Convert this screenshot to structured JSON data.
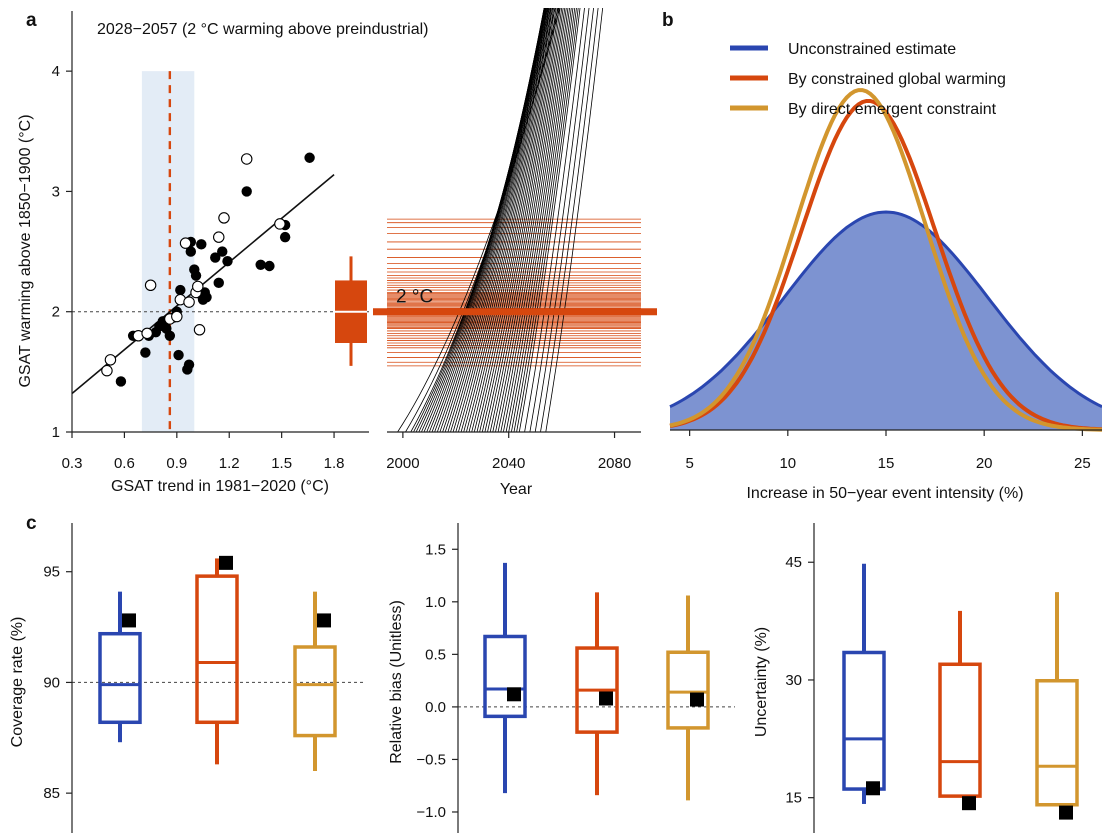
{
  "figure": {
    "panel_letters": [
      "a",
      "b",
      "c"
    ]
  },
  "colors": {
    "unconstrained": "#2a46b0",
    "by_warming": "#d6470e",
    "by_direct": "#d2962e",
    "shade": "#e3ecf6",
    "threshold": "#d6470e",
    "fill_blue": "#7d93d1"
  },
  "chart_data": [
    {
      "id": "a_scatter",
      "type": "scatter",
      "title": "2028−2057 (2 °C warming above preindustrial)",
      "xlabel": "GSAT trend in 1981−2020 (°C)",
      "ylabel": "GSAT warming above 1850−1900 (°C)",
      "xlim": [
        0.3,
        2.0
      ],
      "ylim": [
        1.0,
        4.5
      ],
      "xticks": [
        "0.3",
        "0.6",
        "0.9",
        "1.2",
        "1.5",
        "1.8"
      ],
      "yticks": [
        "1",
        "2",
        "3",
        "4"
      ],
      "observed_trend": 0.86,
      "observed_range": [
        0.7,
        1.0
      ],
      "reference_level": 2.0,
      "fit_line": [
        [
          0.3,
          1.32
        ],
        [
          1.8,
          3.14
        ]
      ],
      "filled_points": [
        [
          0.58,
          1.42
        ],
        [
          0.65,
          1.8
        ],
        [
          0.72,
          1.66
        ],
        [
          0.74,
          1.8
        ],
        [
          0.78,
          1.83
        ],
        [
          0.8,
          1.88
        ],
        [
          0.82,
          1.92
        ],
        [
          0.84,
          1.86
        ],
        [
          0.86,
          1.8
        ],
        [
          0.88,
          1.95
        ],
        [
          0.9,
          2.0
        ],
        [
          0.91,
          1.64
        ],
        [
          0.92,
          2.18
        ],
        [
          0.96,
          1.52
        ],
        [
          0.97,
          1.56
        ],
        [
          0.98,
          2.5
        ],
        [
          0.98,
          2.58
        ],
        [
          1.0,
          2.35
        ],
        [
          1.01,
          2.3
        ],
        [
          1.02,
          2.2
        ],
        [
          1.04,
          2.56
        ],
        [
          1.04,
          2.14
        ],
        [
          1.05,
          2.1
        ],
        [
          1.06,
          2.16
        ],
        [
          1.07,
          2.12
        ],
        [
          1.12,
          2.45
        ],
        [
          1.14,
          2.24
        ],
        [
          1.16,
          2.5
        ],
        [
          1.19,
          2.42
        ],
        [
          1.3,
          3.0
        ],
        [
          1.38,
          2.39
        ],
        [
          1.43,
          2.38
        ],
        [
          1.52,
          2.72
        ],
        [
          1.52,
          2.62
        ],
        [
          1.66,
          3.28
        ]
      ],
      "open_points": [
        [
          0.5,
          1.51
        ],
        [
          0.52,
          1.6
        ],
        [
          0.68,
          1.8
        ],
        [
          0.73,
          1.82
        ],
        [
          0.75,
          2.22
        ],
        [
          0.86,
          1.94
        ],
        [
          0.9,
          1.96
        ],
        [
          0.92,
          2.1
        ],
        [
          0.95,
          2.57
        ],
        [
          0.97,
          2.08
        ],
        [
          1.01,
          2.16
        ],
        [
          1.02,
          2.21
        ],
        [
          1.03,
          1.85
        ],
        [
          1.14,
          2.62
        ],
        [
          1.17,
          2.78
        ],
        [
          1.3,
          3.27
        ],
        [
          1.49,
          2.73
        ]
      ]
    },
    {
      "id": "a_box",
      "type": "box",
      "median": 2.0,
      "q1": 1.74,
      "q3": 2.26,
      "whisker_low": 1.55,
      "whisker_high": 2.46
    },
    {
      "id": "a_time",
      "type": "line",
      "xlabel": "Year",
      "xlim": [
        1994,
        2090
      ],
      "ylim": [
        1.0,
        4.5
      ],
      "xticks": [
        "2000",
        "2040",
        "2080"
      ],
      "threshold_label": "2 °C",
      "threshold": 2.0,
      "crossing_levels": [
        1.55,
        1.58,
        1.62,
        1.66,
        1.7,
        1.72,
        1.74,
        1.76,
        1.78,
        1.8,
        1.82,
        1.84,
        1.86,
        1.87,
        1.88,
        1.89,
        1.9,
        1.91,
        1.92,
        1.93,
        1.94,
        1.95,
        1.96,
        1.97,
        1.98,
        1.99,
        2.0,
        2.01,
        2.02,
        2.03,
        2.04,
        2.05,
        2.06,
        2.07,
        2.08,
        2.09,
        2.1,
        2.11,
        2.12,
        2.13,
        2.14,
        2.15,
        2.16,
        2.18,
        2.2,
        2.22,
        2.24,
        2.26,
        2.28,
        2.3,
        2.33,
        2.36,
        2.4,
        2.45,
        2.52,
        2.58,
        2.65,
        2.7,
        2.74,
        2.77
      ],
      "trajectory_start_years": [
        1998,
        2001,
        2003,
        2004,
        2005,
        2006,
        2007,
        2008,
        2009,
        2010,
        2011,
        2012,
        2013,
        2014,
        2015,
        2016,
        2017,
        2018,
        2019,
        2020,
        2021,
        2022,
        2023,
        2024,
        2025,
        2026,
        2027,
        2028,
        2029,
        2030,
        2031,
        2032,
        2033,
        2034,
        2035,
        2036,
        2037,
        2038,
        2039,
        2040,
        2041,
        2042,
        2043,
        2044,
        2046,
        2048,
        2050,
        2052,
        2054
      ],
      "trajectory_rates": [
        0.034,
        0.037,
        0.04,
        0.042,
        0.044,
        0.046,
        0.048,
        0.05,
        0.052,
        0.054,
        0.056,
        0.058,
        0.06,
        0.062,
        0.064,
        0.066,
        0.068,
        0.07,
        0.072,
        0.074,
        0.076,
        0.078,
        0.08,
        0.082,
        0.084,
        0.086,
        0.088,
        0.09,
        0.092,
        0.094,
        0.096,
        0.098,
        0.1,
        0.102,
        0.104,
        0.106,
        0.108,
        0.11,
        0.112,
        0.114,
        0.116,
        0.118,
        0.12,
        0.122,
        0.124,
        0.126,
        0.128,
        0.13,
        0.132
      ]
    },
    {
      "id": "b_density",
      "type": "area",
      "xlabel": "Increase in 50−year event intensity (%)",
      "xlim": [
        4,
        26
      ],
      "xticks": [
        "5",
        "10",
        "15",
        "20",
        "25"
      ],
      "series": [
        {
          "name": "Unconstrained estimate",
          "mean": 15.0,
          "sd": 5.2,
          "peak": 1.0
        },
        {
          "name": "By constrained global warming",
          "mean": 14.1,
          "sd": 3.4,
          "peak": 1.51
        },
        {
          "name": "By direct emergent constraint",
          "mean": 13.7,
          "sd": 3.3,
          "peak": 1.56
        }
      ]
    },
    {
      "id": "c_coverage",
      "type": "box",
      "ylabel": "Coverage rate (%)",
      "ylim": [
        83.2,
        97.2
      ],
      "yticks": [
        "85",
        "90",
        "95"
      ],
      "reference": 90,
      "boxes": [
        {
          "whisker_low": 87.3,
          "q1": 88.2,
          "median": 89.9,
          "q3": 92.2,
          "whisker_high": 94.1,
          "marker": 92.8
        },
        {
          "whisker_low": 86.3,
          "q1": 88.2,
          "median": 90.9,
          "q3": 94.8,
          "whisker_high": 95.6,
          "marker": 95.4
        },
        {
          "whisker_low": 86.0,
          "q1": 87.6,
          "median": 89.9,
          "q3": 91.6,
          "whisker_high": 94.1,
          "marker": 92.8
        }
      ]
    },
    {
      "id": "c_bias",
      "type": "box",
      "ylabel": "Relative bias (Unitless)",
      "ylim": [
        -1.2,
        1.75
      ],
      "yticks": [
        "−1.0",
        "−0.5",
        "0.0",
        "0.5",
        "1.0",
        "1.5"
      ],
      "reference": 0,
      "boxes": [
        {
          "whisker_low": -0.82,
          "q1": -0.09,
          "median": 0.17,
          "q3": 0.67,
          "whisker_high": 1.37,
          "marker": 0.12
        },
        {
          "whisker_low": -0.84,
          "q1": -0.24,
          "median": 0.16,
          "q3": 0.56,
          "whisker_high": 1.09,
          "marker": 0.08
        },
        {
          "whisker_low": -0.89,
          "q1": -0.2,
          "median": 0.14,
          "q3": 0.52,
          "whisker_high": 1.06,
          "marker": 0.07
        }
      ]
    },
    {
      "id": "c_uncertainty",
      "type": "box",
      "ylabel": "Uncertainty (%)",
      "ylim": [
        10.5,
        50
      ],
      "yticks": [
        "15",
        "30",
        "45"
      ],
      "boxes": [
        {
          "whisker_low": 14.2,
          "q1": 16.1,
          "median": 22.5,
          "q3": 33.5,
          "whisker_high": 44.8,
          "marker": 16.2
        },
        {
          "whisker_low": 15.2,
          "q1": 15.2,
          "median": 19.6,
          "q3": 32.0,
          "whisker_high": 38.8,
          "marker": 14.3
        },
        {
          "whisker_low": 14.1,
          "q1": 14.1,
          "median": 19.0,
          "q3": 29.9,
          "whisker_high": 41.2,
          "marker": 13.1
        }
      ]
    }
  ]
}
